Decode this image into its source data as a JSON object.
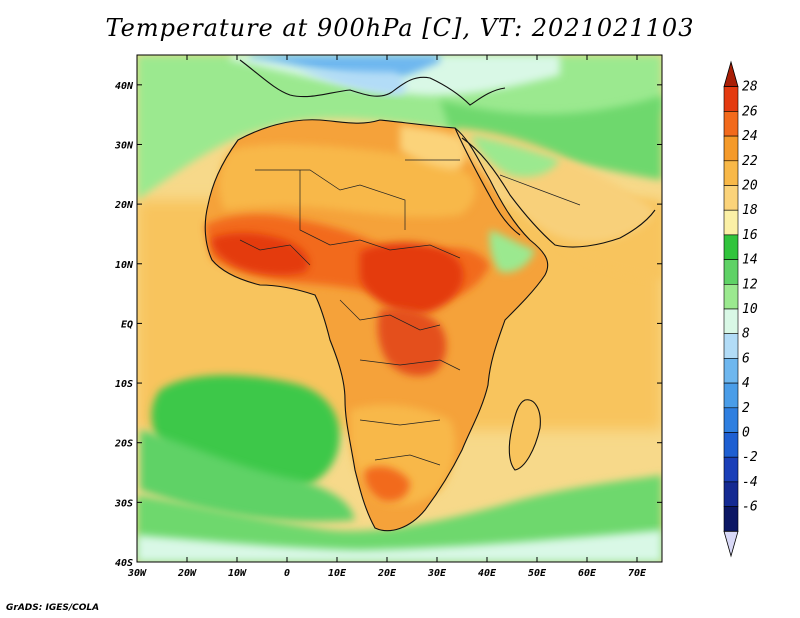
{
  "title": "Temperature at 900hPa [C], VT: 2021021103",
  "credit": "GrADS: IGES/COLA",
  "colors": {
    "ocean_cool": "#e9f9d6",
    "ocean_warm": "#f8df8a",
    "land_hot": "#f26a1c",
    "land_hottest": "#e43a10",
    "green": "#5fd266",
    "light_green": "#9be98f",
    "pale_green": "#d9f8e6",
    "light_blue": "#b2dcf7",
    "blue": "#6eb7ef"
  },
  "axes": {
    "lon_range": [
      -30,
      75
    ],
    "lat_range": [
      -40,
      45
    ],
    "x_ticks": [
      "30W",
      "20W",
      "10W",
      "0",
      "10E",
      "20E",
      "30E",
      "40E",
      "50E",
      "60E",
      "70E"
    ],
    "x_tick_values": [
      -30,
      -20,
      -10,
      0,
      10,
      20,
      30,
      40,
      50,
      60,
      70
    ],
    "y_ticks": [
      "40N",
      "30N",
      "20N",
      "10N",
      "EQ",
      "10S",
      "20S",
      "30S",
      "40S"
    ],
    "y_tick_values": [
      40,
      30,
      20,
      10,
      0,
      -10,
      -20,
      -30,
      -40
    ]
  },
  "colorbar": {
    "labels": [
      "28",
      "26",
      "24",
      "22",
      "20",
      "18",
      "16",
      "14",
      "12",
      "10",
      "8",
      "6",
      "4",
      "2",
      "0",
      "-2",
      "-4",
      "-6"
    ],
    "colors": [
      "#a81e06",
      "#e43a10",
      "#f26a1c",
      "#f59a2a",
      "#f8b848",
      "#fbd37a",
      "#fbf0a6",
      "#31c43c",
      "#5fd266",
      "#9be98f",
      "#d9f8e6",
      "#b2dcf7",
      "#6eb7ef",
      "#4a9de8",
      "#2f7fe0",
      "#1e5fd2",
      "#1a3fb8",
      "#142a92",
      "#0c1764",
      "#d8d8f6"
    ]
  }
}
